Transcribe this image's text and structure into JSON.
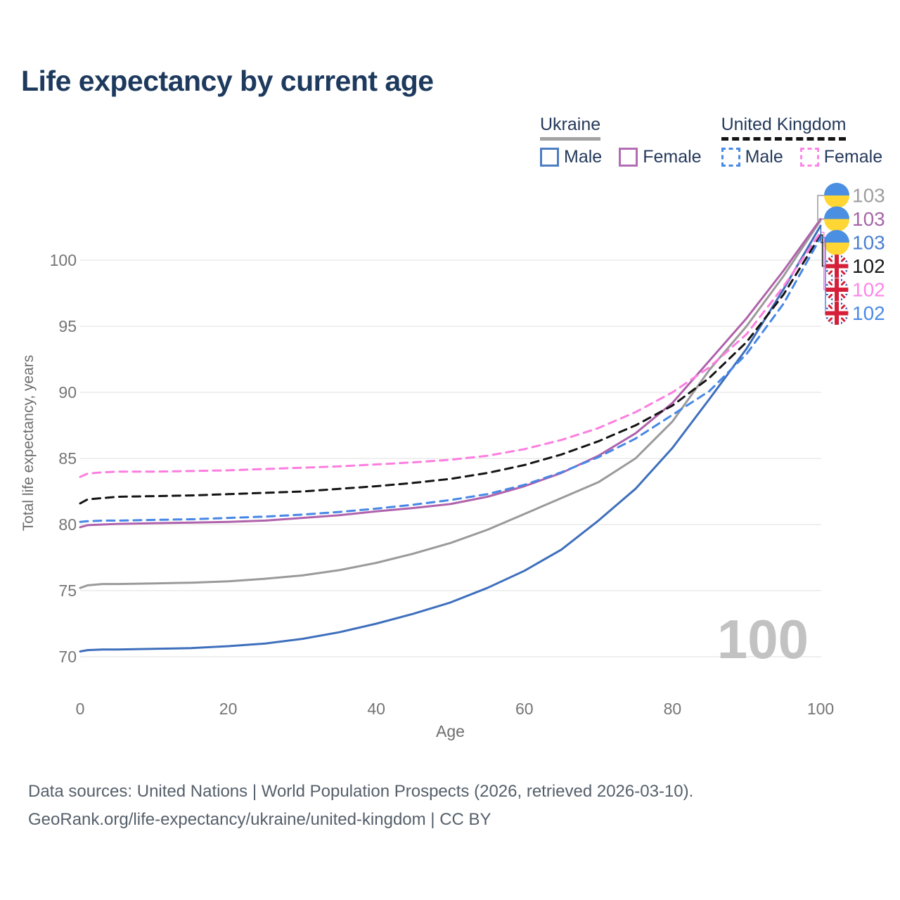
{
  "title": "Life expectancy by current age",
  "legend": {
    "ukraine": {
      "label": "Ukraine",
      "male": "Male",
      "female": "Female"
    },
    "united_kingdom": {
      "label": "United Kingdom",
      "male": "Male",
      "female": "Female"
    }
  },
  "watermark": "100",
  "footer": {
    "line1": "Data sources: United Nations | World Population Prospects (2026, retrieved 2026-03-10).",
    "line2": "GeoRank.org/life-expectancy/ukraine/united-kingdom | CC BY"
  },
  "colors": {
    "title_text": "#1d3a5e",
    "legend_text": "#24395b",
    "axis_text": "#757575",
    "gridline": "#eaeaea",
    "watermark": "#c2c2c2",
    "footer_text": "#555f6a"
  },
  "chart_data": {
    "type": "line",
    "title": "Life expectancy by current age",
    "xlabel": "Age",
    "ylabel": "Total life expectancy, years",
    "xlim": [
      0,
      100
    ],
    "ylim": [
      68.5,
      104
    ],
    "xticks": [
      0,
      20,
      40,
      60,
      80,
      100
    ],
    "yticks": [
      70,
      75,
      80,
      85,
      90,
      95,
      100
    ],
    "grid": true,
    "legend_position": "top-right",
    "x": [
      0,
      1,
      3,
      5,
      10,
      15,
      20,
      25,
      30,
      35,
      40,
      45,
      50,
      55,
      60,
      65,
      70,
      75,
      80,
      85,
      90,
      95,
      100
    ],
    "series": [
      {
        "name": "Ukraine total",
        "country": "Ukraine",
        "sex": "total",
        "style": "solid",
        "color": "#9a9a9a",
        "flag": "ua",
        "end_label": "103",
        "label_color": "#9e9e9e",
        "values": [
          75.2,
          75.4,
          75.5,
          75.5,
          75.55,
          75.6,
          75.7,
          75.9,
          76.15,
          76.55,
          77.1,
          77.8,
          78.6,
          79.6,
          80.8,
          82.0,
          83.2,
          85.0,
          87.8,
          91.7,
          95.0,
          98.8,
          103.0
        ]
      },
      {
        "name": "Ukraine female",
        "country": "Ukraine",
        "sex": "female",
        "style": "solid",
        "color": "#af62ab",
        "flag": "ua",
        "end_label": "103",
        "label_color": "#a765a7",
        "values": [
          79.8,
          79.95,
          80.0,
          80.05,
          80.1,
          80.15,
          80.2,
          80.3,
          80.5,
          80.7,
          81.0,
          81.25,
          81.55,
          82.1,
          82.9,
          83.9,
          85.2,
          86.9,
          89.2,
          92.4,
          95.6,
          99.2,
          103.1
        ]
      },
      {
        "name": "Ukraine male",
        "country": "Ukraine",
        "sex": "male",
        "style": "solid",
        "color": "#3e6fbc",
        "flag": "ua",
        "end_label": "103",
        "label_color": "#4a7fd1",
        "values": [
          70.4,
          70.5,
          70.55,
          70.55,
          70.6,
          70.65,
          70.8,
          71.0,
          71.35,
          71.85,
          72.5,
          73.25,
          74.1,
          75.2,
          76.5,
          78.1,
          80.3,
          82.7,
          85.8,
          89.5,
          93.3,
          97.8,
          102.6
        ]
      },
      {
        "name": "United Kingdom total",
        "country": "United Kingdom",
        "sex": "total",
        "style": "dashed",
        "color": "#141414",
        "flag": "uk",
        "end_label": "102",
        "label_color": "#1a1a1a",
        "values": [
          81.6,
          81.9,
          82.0,
          82.1,
          82.15,
          82.2,
          82.3,
          82.4,
          82.5,
          82.7,
          82.9,
          83.15,
          83.45,
          83.9,
          84.5,
          85.3,
          86.3,
          87.5,
          89.0,
          91.1,
          93.8,
          97.4,
          101.9
        ]
      },
      {
        "name": "United Kingdom female",
        "country": "United Kingdom",
        "sex": "female",
        "style": "dashed",
        "color": "#fc7ee0",
        "flag": "uk",
        "end_label": "102",
        "label_color": "#ff85e8",
        "values": [
          83.6,
          83.85,
          83.95,
          84.0,
          84.0,
          84.05,
          84.1,
          84.2,
          84.3,
          84.4,
          84.55,
          84.7,
          84.9,
          85.2,
          85.7,
          86.4,
          87.3,
          88.5,
          90.0,
          91.9,
          94.4,
          98.0,
          102.1
        ]
      },
      {
        "name": "United Kingdom male",
        "country": "United Kingdom",
        "sex": "male",
        "style": "dashed",
        "color": "#4687e6",
        "flag": "uk",
        "end_label": "102",
        "label_color": "#4a8ae8",
        "values": [
          80.2,
          80.25,
          80.3,
          80.3,
          80.35,
          80.4,
          80.5,
          80.6,
          80.75,
          80.95,
          81.2,
          81.5,
          81.85,
          82.3,
          83.0,
          83.95,
          85.1,
          86.5,
          88.3,
          90.1,
          92.9,
          96.7,
          101.7
        ]
      }
    ]
  }
}
